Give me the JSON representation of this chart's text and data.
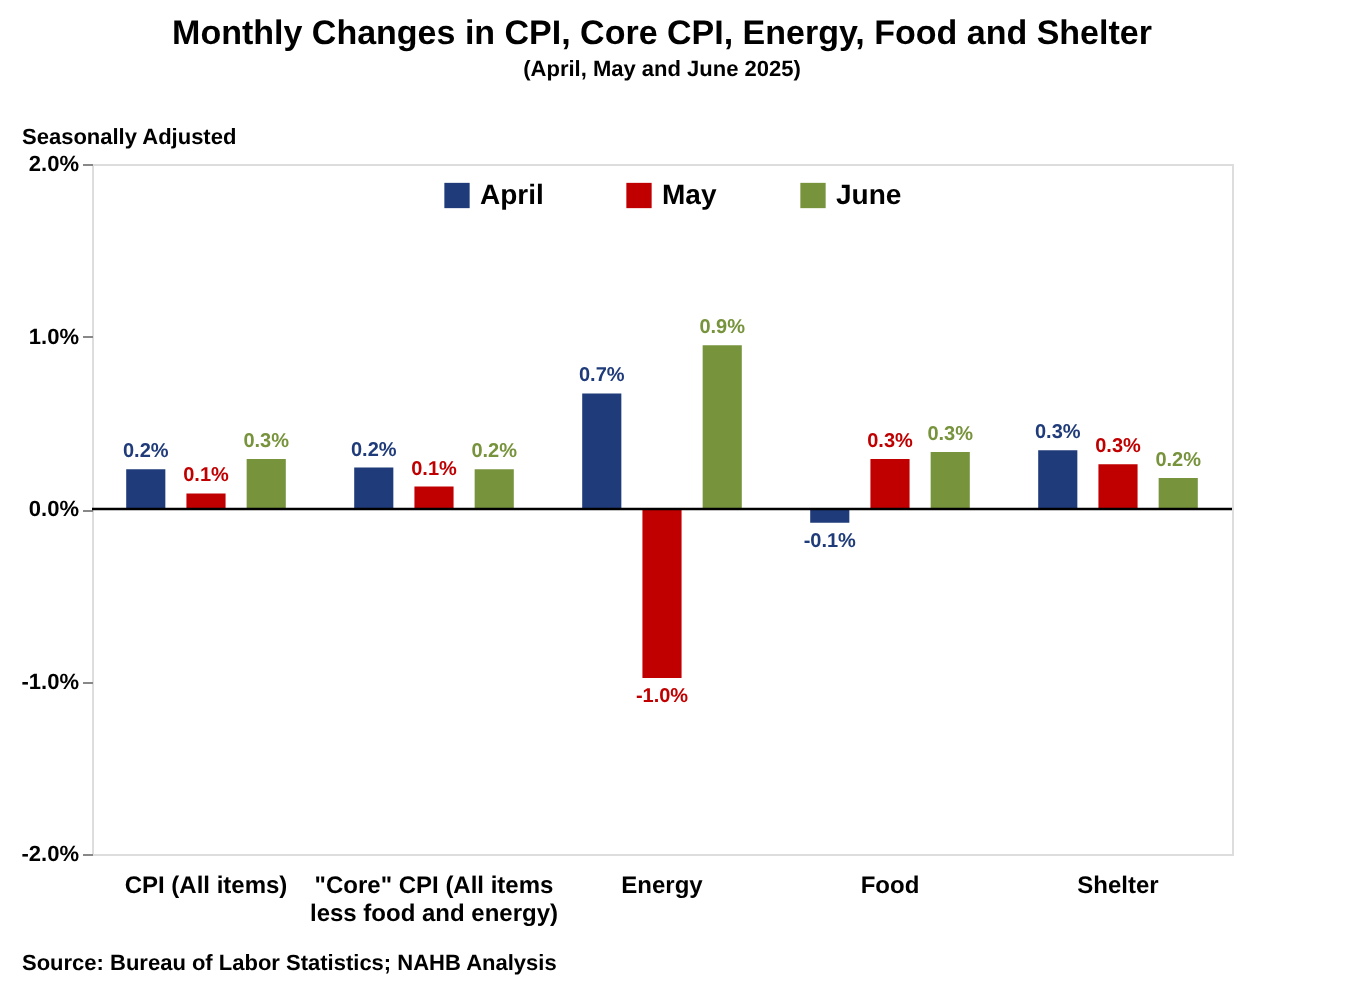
{
  "chart_data": {
    "type": "bar",
    "title": "Monthly Changes in CPI, Core CPI, Energy, Food and Shelter",
    "subtitle": "(April, May and June 2025)",
    "categories": [
      "CPI (All items)",
      "\"Core\" CPI (All items less food and energy)",
      "Energy",
      "Food",
      "Shelter"
    ],
    "series": [
      {
        "name": "April",
        "color": "#1f3b7a",
        "values": [
          0.23,
          0.24,
          0.67,
          -0.08,
          0.34
        ],
        "value_labels": [
          "0.2%",
          "0.2%",
          "0.7%",
          "-0.1%",
          "0.3%"
        ]
      },
      {
        "name": "May",
        "color": "#c00000",
        "values": [
          0.09,
          0.13,
          -0.98,
          0.29,
          0.26
        ],
        "value_labels": [
          "0.1%",
          "0.1%",
          "-1.0%",
          "0.3%",
          "0.3%"
        ]
      },
      {
        "name": "June",
        "color": "#77933c",
        "values": [
          0.29,
          0.23,
          0.95,
          0.33,
          0.18
        ],
        "value_labels": [
          "0.3%",
          "0.2%",
          "0.9%",
          "0.3%",
          "0.2%"
        ]
      }
    ],
    "ylim": [
      -2,
      2
    ],
    "yticks": [
      {
        "value": -2,
        "label": "-2.0%"
      },
      {
        "value": -1,
        "label": "-1.0%"
      },
      {
        "value": 0,
        "label": "0.0%"
      },
      {
        "value": 1,
        "label": "1.0%"
      },
      {
        "value": 2,
        "label": "2.0%"
      }
    ],
    "ref_lines": [
      {
        "axis": "y",
        "value": 0,
        "label": null
      }
    ],
    "grid": false,
    "legend": "top",
    "annotations": [
      "Seasonally Adjusted",
      "Source: Bureau of Labor Statistics; NAHB Analysis"
    ]
  }
}
